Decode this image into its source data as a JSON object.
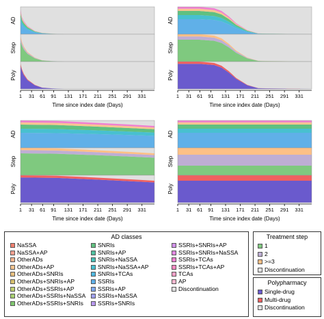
{
  "panels": [
    {
      "id": "top-left",
      "rows": [
        "AD",
        "Step",
        "Poly"
      ],
      "xlabel": "Time since index date (Days)",
      "ticks": [
        "1",
        "31",
        "61",
        "91",
        "131",
        "171",
        "211",
        "251",
        "291",
        "331"
      ]
    },
    {
      "id": "top-right",
      "rows": [
        "AD",
        "Step",
        "Poly"
      ],
      "xlabel": "Time since index date (Days)",
      "ticks": [
        "1",
        "31",
        "61",
        "91",
        "131",
        "171",
        "211",
        "251",
        "291",
        "331"
      ]
    },
    {
      "id": "bottom-left",
      "rows": [
        "AD",
        "Step",
        "Poly"
      ],
      "xlabel": "Time since index date (Days)",
      "ticks": [
        "1",
        "31",
        "61",
        "91",
        "131",
        "171",
        "211",
        "251",
        "291",
        "331"
      ]
    },
    {
      "id": "bottom-right",
      "rows": [
        "AD",
        "Step",
        "Poly"
      ],
      "xlabel": "Time since index date (Days)",
      "ticks": [
        "1",
        "31",
        "61",
        "91",
        "131",
        "171",
        "211",
        "251",
        "291",
        "331"
      ]
    }
  ],
  "chart_data": [
    {
      "type": "area",
      "panel": "top-left",
      "x": [
        1,
        5,
        10,
        20,
        40,
        60,
        90,
        120,
        365
      ],
      "xlim": [
        1,
        365
      ],
      "series": [
        {
          "row": "AD",
          "values": [
            0.9,
            0.62,
            0.48,
            0.3,
            0.12,
            0.05,
            0.02,
            0,
            0
          ]
        },
        {
          "row": "Step",
          "values": [
            0.92,
            0.72,
            0.55,
            0.35,
            0.15,
            0.05,
            0.02,
            0,
            0
          ]
        },
        {
          "row": "Poly",
          "values": [
            0.92,
            0.72,
            0.55,
            0.35,
            0.15,
            0.05,
            0.02,
            0,
            0
          ]
        }
      ]
    },
    {
      "type": "area",
      "panel": "top-right",
      "x": [
        1,
        60,
        100,
        120,
        140,
        160,
        190,
        220,
        365
      ],
      "xlim": [
        1,
        365
      ],
      "series": [
        {
          "row": "AD",
          "values": [
            1.0,
            1.0,
            0.95,
            0.85,
            0.65,
            0.4,
            0.15,
            0.03,
            0
          ]
        },
        {
          "row": "Step",
          "values": [
            1.0,
            1.0,
            0.95,
            0.85,
            0.65,
            0.4,
            0.15,
            0.03,
            0
          ]
        },
        {
          "row": "Poly",
          "values": [
            1.0,
            1.0,
            0.95,
            0.85,
            0.65,
            0.4,
            0.15,
            0.03,
            0
          ]
        }
      ]
    },
    {
      "type": "area",
      "panel": "bottom-left",
      "x": [
        1,
        100,
        200,
        300,
        365
      ],
      "xlim": [
        1,
        365
      ],
      "series": [
        {
          "row": "AD",
          "values": [
            1.0,
            0.98,
            0.92,
            0.85,
            0.8
          ]
        },
        {
          "row": "Step",
          "values": [
            1.0,
            0.98,
            0.92,
            0.85,
            0.8
          ]
        },
        {
          "row": "Poly",
          "values": [
            1.0,
            0.98,
            0.92,
            0.85,
            0.8
          ]
        }
      ]
    },
    {
      "type": "area",
      "panel": "bottom-right",
      "x": [
        1,
        50,
        120,
        200,
        300,
        365
      ],
      "xlim": [
        1,
        365
      ],
      "series": [
        {
          "row": "AD",
          "values": [
            1.0,
            1.0,
            1.0,
            1.0,
            1.0,
            1.0
          ]
        },
        {
          "row": "Step",
          "values": [
            1.0,
            1.0,
            1.0,
            1.0,
            1.0,
            1.0
          ]
        },
        {
          "row": "Poly",
          "values": [
            1.0,
            1.0,
            1.0,
            1.0,
            1.0,
            1.0
          ]
        }
      ]
    }
  ],
  "legend": {
    "ad_classes": {
      "title": "AD classes",
      "items": [
        {
          "label": "NaSSA",
          "color": "#f08070"
        },
        {
          "label": "NaSSA+AP",
          "color": "#f4a090"
        },
        {
          "label": "OtherADs",
          "color": "#f7b590"
        },
        {
          "label": "OtherADs+AP",
          "color": "#f8c590"
        },
        {
          "label": "OtherADs+SNRIs",
          "color": "#e8c080"
        },
        {
          "label": "OtherADs+SNRIs+AP",
          "color": "#d8c070"
        },
        {
          "label": "OtherADs+SSRIs+AP",
          "color": "#c0d070"
        },
        {
          "label": "OtherADs+SSRIs+NaSSA",
          "color": "#a8d070"
        },
        {
          "label": "OtherADs+SSRIs+SNRIs",
          "color": "#80c870"
        },
        {
          "label": "SNRIs",
          "color": "#60c080"
        },
        {
          "label": "SNRIs+AP",
          "color": "#50c0a0"
        },
        {
          "label": "SNRIs+NaSSA",
          "color": "#48c0b8"
        },
        {
          "label": "SNRIs+NaSSA+AP",
          "color": "#48c0d0"
        },
        {
          "label": "SNRIs+TCAs",
          "color": "#50b8e0"
        },
        {
          "label": "SSRIs",
          "color": "#60b0e8"
        },
        {
          "label": "SSRIs+AP",
          "color": "#80a8f0"
        },
        {
          "label": "SSRIs+NaSSA",
          "color": "#a0a0f0"
        },
        {
          "label": "SSRIs+SNRIs",
          "color": "#b898f0"
        },
        {
          "label": "SSRIs+SNRIs+AP",
          "color": "#d090e8"
        },
        {
          "label": "SSRIs+SNRIs+NaSSA",
          "color": "#e088e0"
        },
        {
          "label": "SSRIs+TCAs",
          "color": "#f080d0"
        },
        {
          "label": "SSRIs+TCAs+AP",
          "color": "#f888c0"
        },
        {
          "label": "TCAs",
          "color": "#f8a0c8"
        },
        {
          "label": "AP",
          "color": "#f8b8d0"
        },
        {
          "label": "Discontinuation",
          "color": "#e0e0e0"
        }
      ]
    },
    "treatment_step": {
      "title": "Treatment step",
      "items": [
        {
          "label": "1",
          "color": "#7fc97f"
        },
        {
          "label": "2",
          "color": "#beaed4"
        },
        {
          "label": ">=3",
          "color": "#fdc086"
        },
        {
          "label": "Discontinuation",
          "color": "#e0e0e0"
        }
      ]
    },
    "polypharmacy": {
      "title": "Polypharmacy",
      "items": [
        {
          "label": "Single-drug",
          "color": "#6a5acd"
        },
        {
          "label": "Multi-drug",
          "color": "#f06060"
        },
        {
          "label": "Discontinuation",
          "color": "#e0e0e0"
        }
      ]
    }
  }
}
